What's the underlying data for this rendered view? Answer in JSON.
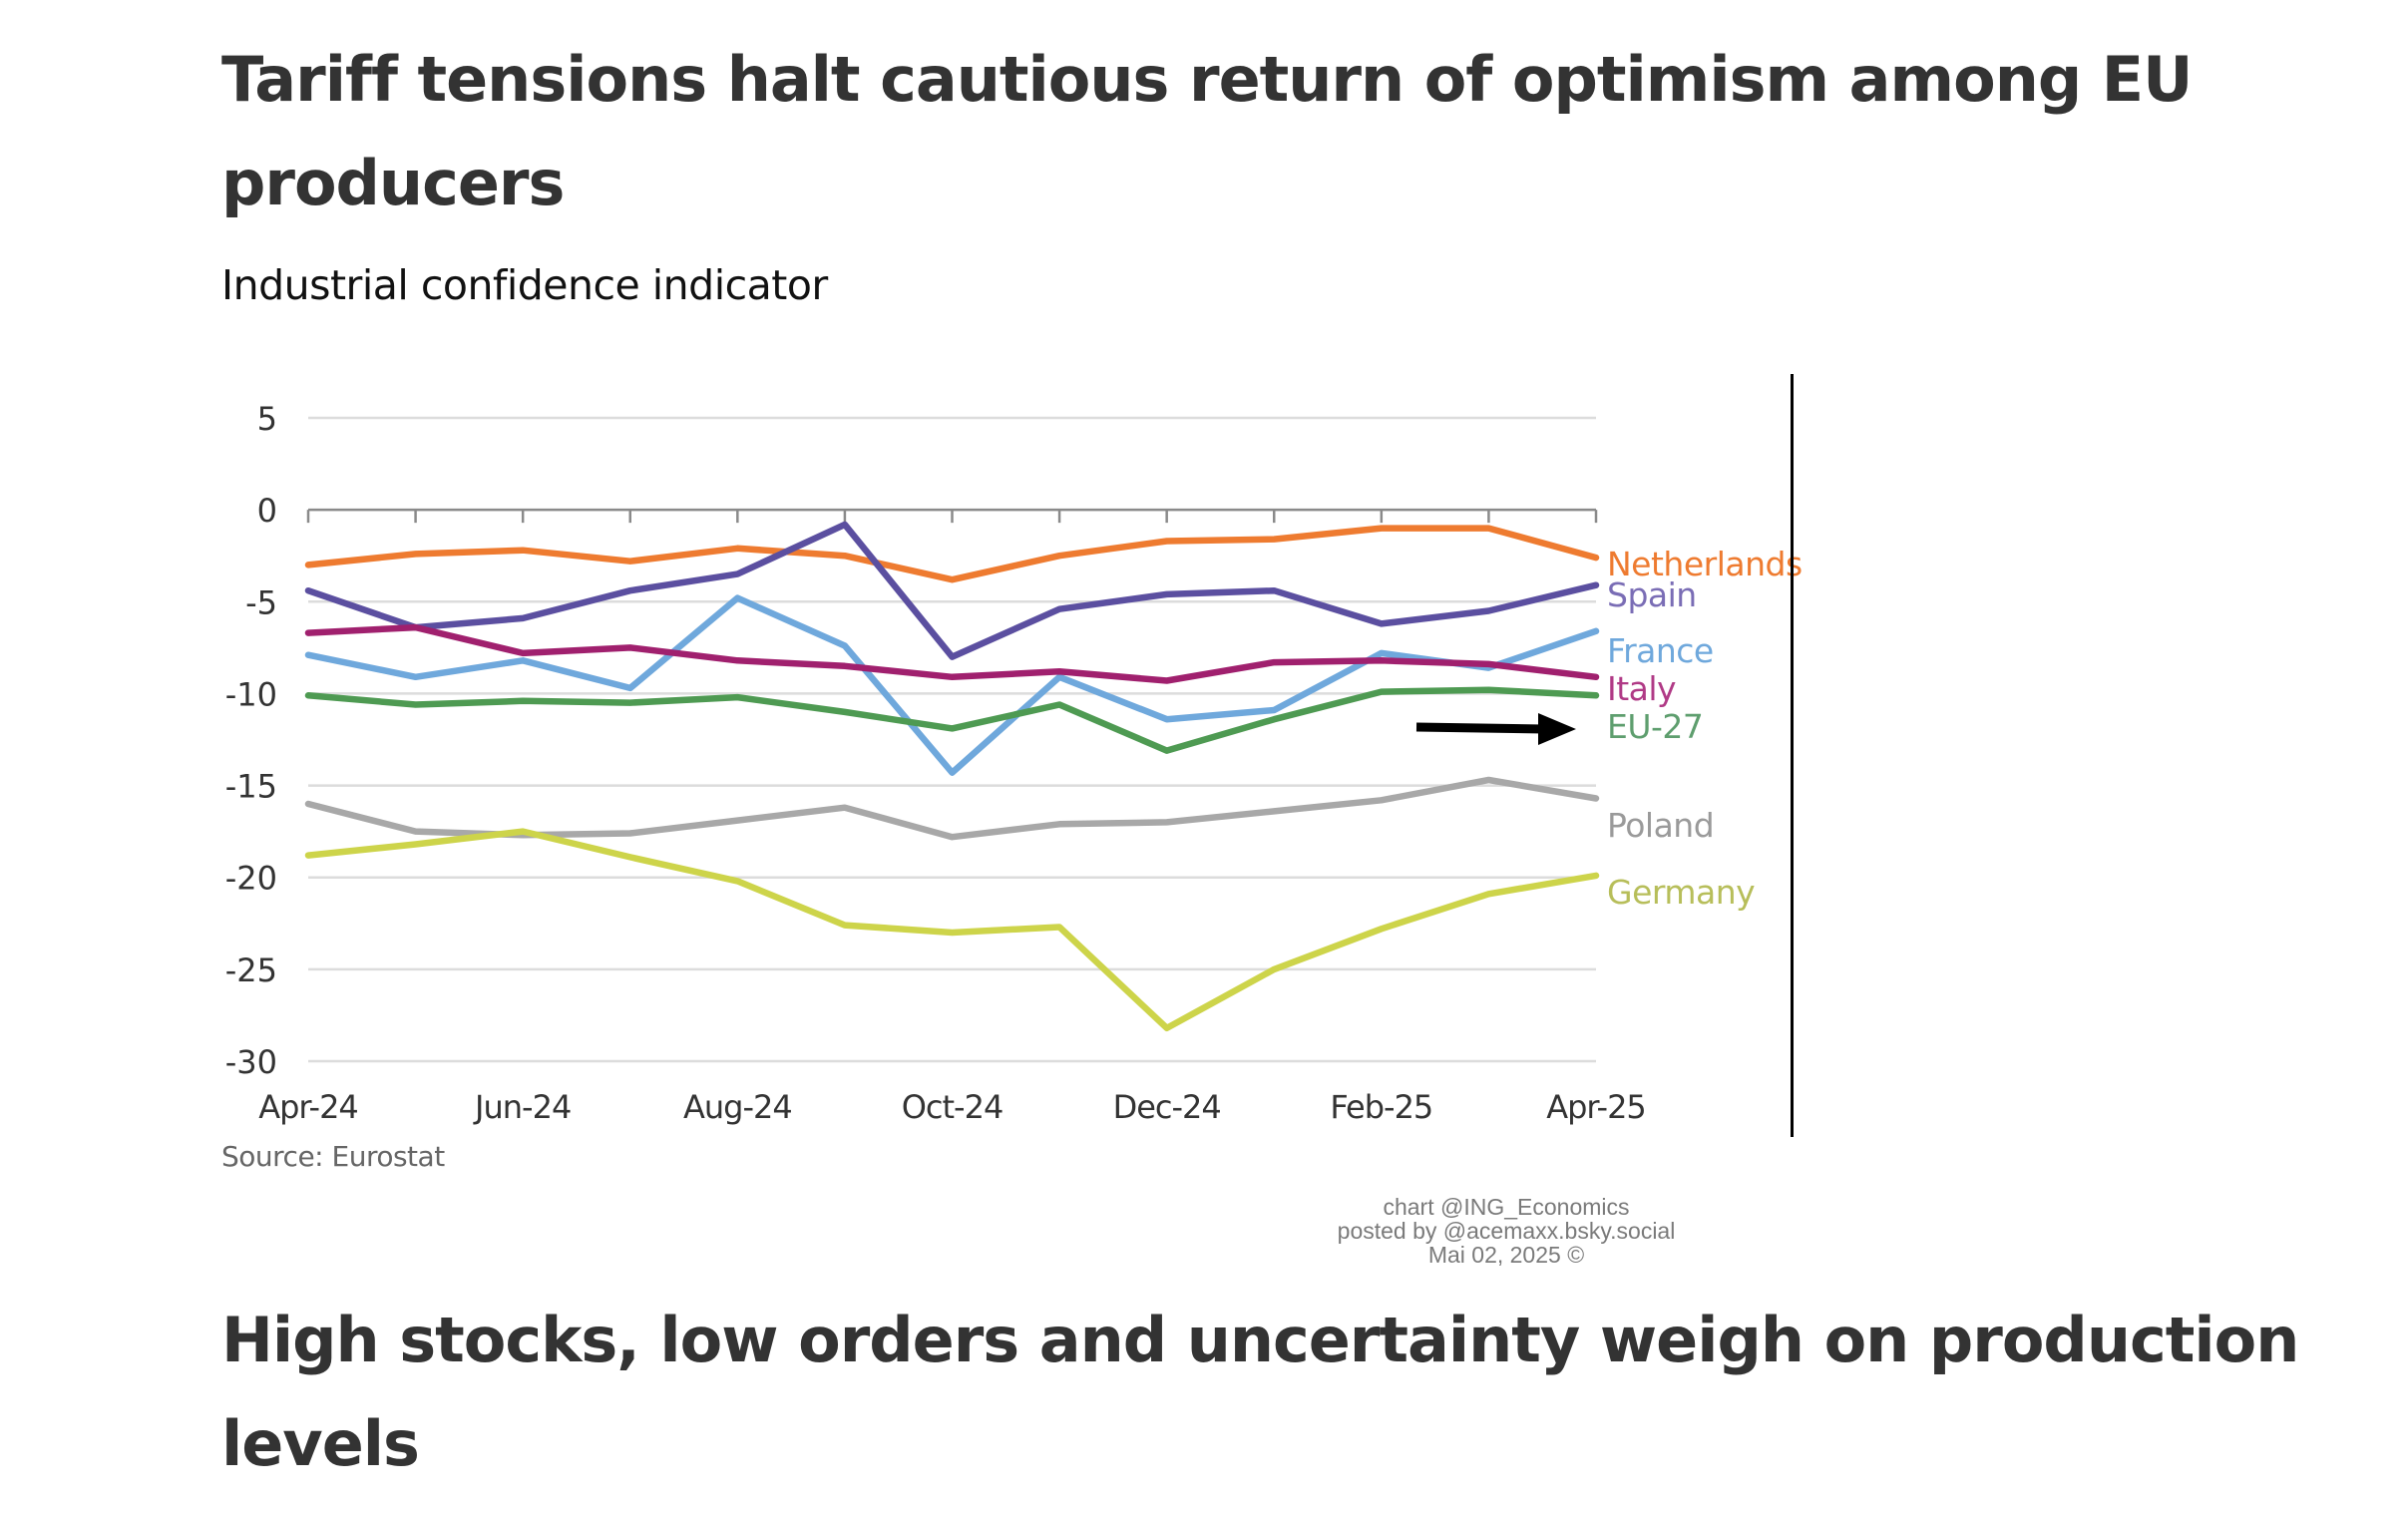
{
  "page": {
    "heading": "Tariff tensions halt cautious return of optimism among EU producers",
    "next_heading": "High stocks, low orders and uncertainty weigh on production levels",
    "credit_lines": [
      "chart @ING_Economics",
      "posted by @acemaxx.bsky.social",
      "Mai 02, 2025 ©"
    ]
  },
  "chart_data": {
    "type": "line",
    "title": "Industrial confidence indicator",
    "source": "Source: Eurostat",
    "xlabel": "",
    "ylabel": "",
    "x": [
      "Apr-24",
      "May-24",
      "Jun-24",
      "Jul-24",
      "Aug-24",
      "Sep-24",
      "Oct-24",
      "Nov-24",
      "Dec-24",
      "Jan-25",
      "Feb-25",
      "Mar-25",
      "Apr-25"
    ],
    "x_tick_labels": [
      "Apr-24",
      "Jun-24",
      "Aug-24",
      "Oct-24",
      "Dec-24",
      "Feb-25",
      "Apr-25"
    ],
    "y_ticks": [
      5,
      0,
      -5,
      -10,
      -15,
      -20,
      -25,
      -30
    ],
    "ylim": [
      -30,
      5
    ],
    "grid": true,
    "legend": "inline-right",
    "annotation": "arrow pointing right toward EU-27 label",
    "series": [
      {
        "name": "Netherlands",
        "color": "#EE7B30",
        "values": [
          -3.0,
          -2.4,
          -2.2,
          -2.8,
          -2.1,
          -2.5,
          -3.8,
          -2.5,
          -1.7,
          -1.6,
          -1.0,
          -1.0,
          -2.6
        ]
      },
      {
        "name": "Spain",
        "color": "#5B4FA0",
        "values": [
          -4.4,
          -6.4,
          -5.9,
          -4.4,
          -3.5,
          -0.8,
          -8.0,
          -5.4,
          -4.6,
          -4.4,
          -6.2,
          -5.5,
          -4.1
        ]
      },
      {
        "name": "France",
        "color": "#6FA8DC",
        "values": [
          -7.9,
          -9.1,
          -8.2,
          -9.7,
          -4.8,
          -7.4,
          -14.3,
          -9.1,
          -11.4,
          -10.9,
          -7.8,
          -8.6,
          -6.6
        ]
      },
      {
        "name": "Italy",
        "color": "#A0206E",
        "values": [
          -6.7,
          -6.4,
          -7.8,
          -7.5,
          -8.2,
          -8.5,
          -9.1,
          -8.8,
          -9.3,
          -8.3,
          -8.2,
          -8.4,
          -9.1
        ]
      },
      {
        "name": "EU-27",
        "color": "#4E9A52",
        "values": [
          -10.1,
          -10.6,
          -10.4,
          -10.5,
          -10.2,
          -11.0,
          -11.9,
          -10.6,
          -13.1,
          -11.4,
          -9.9,
          -9.8,
          -10.1
        ]
      },
      {
        "name": "Poland",
        "color": "#A8A8A8",
        "values": [
          -16.0,
          -17.5,
          -17.7,
          -17.6,
          -16.9,
          -16.2,
          -17.8,
          -17.1,
          -17.0,
          -16.4,
          -15.8,
          -14.7,
          -15.7
        ]
      },
      {
        "name": "Germany",
        "color": "#CDD44A",
        "values": [
          -18.8,
          -18.2,
          -17.5,
          -18.9,
          -20.2,
          -22.6,
          -23.0,
          -22.7,
          -28.2,
          -25.0,
          -22.8,
          -20.9,
          -19.9
        ]
      }
    ],
    "label_colors": {
      "Netherlands": "#EE7B30",
      "Spain": "#7A6DB5",
      "France": "#6FA8DC",
      "Italy": "#B03A86",
      "EU-27": "#5E9E6E",
      "Poland": "#9A9A9A",
      "Germany": "#B7BE5A"
    }
  }
}
